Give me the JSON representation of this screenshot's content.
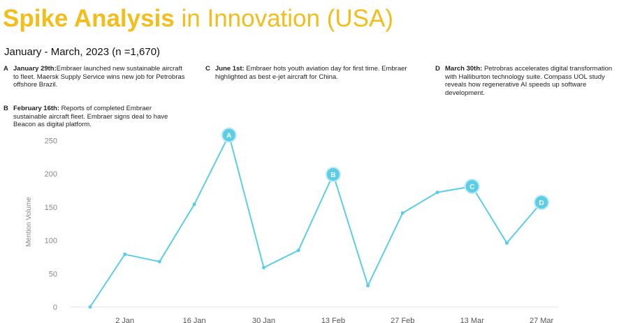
{
  "title": {
    "bold": "Spike Analysis",
    "rest": " in Innovation (USA)"
  },
  "subtitle": "January - March, 2023 (n =1,670)",
  "annotations": [
    {
      "letter": "A",
      "head": "January 29th:",
      "text": "Embraer launched new sustainable aircraft to fleet. Maersk Supply Service wins new job for Petrobras offshore Brazil."
    },
    {
      "letter": "B",
      "head": "February 16th:",
      "text": " Reports of completed Embraer sustainable aircraft fleet. Embraer signs deal to have Beacon as digital platform."
    },
    {
      "letter": "C",
      "head": "June 1st:",
      "text": " Embraer hots youth aviation day for first time. Embraer highlighted as best e-jet aircraft for China."
    },
    {
      "letter": "D",
      "head": "March 30th:",
      "text": " Petrobras accelerates digital transformation with Halliburton technology suite. Compass UOL study reveals how regenerative AI speeds up software development."
    }
  ],
  "colors": {
    "title": "#f2be1e",
    "line": "#5ccde6",
    "marker": "#5ccde6",
    "axis_text": "#888888"
  },
  "chart_data": {
    "type": "line",
    "ylabel": "Mention Volume",
    "ylim": [
      0,
      250
    ],
    "yticks": [
      0,
      50,
      100,
      150,
      200,
      250
    ],
    "xtick_labels": [
      "2 Jan",
      "16 Jan",
      "30 Jan",
      "13 Feb",
      "27 Feb",
      "13 Mar",
      "27 Mar"
    ],
    "series": [
      {
        "x": [
          "26 Dec",
          "2 Jan",
          "9 Jan",
          "16 Jan",
          "23 Jan",
          "30 Jan",
          "6 Feb",
          "13 Feb",
          "20 Feb",
          "27 Feb",
          "6 Mar",
          "13 Mar",
          "20 Mar",
          "27 Mar"
        ],
        "values": [
          0,
          79,
          68,
          154,
          258,
          59,
          85,
          199,
          32,
          141,
          172,
          181,
          96,
          157
        ]
      }
    ],
    "markers": [
      {
        "label": "A",
        "index": 4
      },
      {
        "label": "B",
        "index": 7
      },
      {
        "label": "C",
        "index": 11
      },
      {
        "label": "D",
        "index": 13
      }
    ],
    "grid": false
  }
}
